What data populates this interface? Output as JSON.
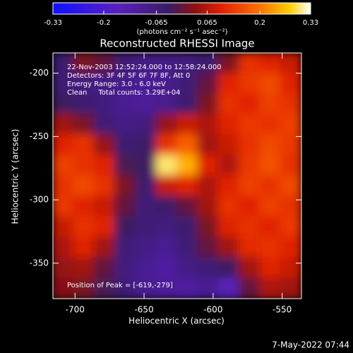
{
  "chart_data": {
    "type": "heatmap",
    "title": "Reconstructed RHESSI Image",
    "xlabel": "Heliocentric X (arcsec)",
    "ylabel": "Heliocentric Y (arcsec)",
    "xlim": [
      -716,
      -536
    ],
    "ylim": [
      -378,
      -184
    ],
    "xticks": [
      -700,
      -650,
      -600,
      -550
    ],
    "yticks": [
      -350,
      -300,
      -250,
      -200
    ],
    "clim": [
      -0.33,
      0.33
    ],
    "cticks": [
      -0.33,
      -0.2,
      -0.065,
      0.065,
      0.2,
      0.33
    ],
    "colorbar_label": "(photons cm⁻² s⁻¹ asec⁻²)",
    "annotations": [
      "22-Nov-2003 12:52:24.000 to 12:58:24.000",
      "Detectors: 3F 4F 5F 6F 7F 8F, Att 0",
      "Energy Range: 3.0 - 6.0 keV",
      "Clean     Total counts: 3.29E+04"
    ],
    "peak_label": "Position of Peak = [-619,-279]",
    "timestamp": "7-May-2022 07:44",
    "z": [
      [
        -0.05,
        0.02,
        0.0,
        -0.06,
        -0.08,
        -0.08,
        -0.07,
        -0.05,
        0.02,
        0.12,
        0.1,
        0.08
      ],
      [
        -0.06,
        -0.07,
        -0.08,
        -0.09,
        -0.1,
        -0.09,
        -0.06,
        0.0,
        0.1,
        0.13,
        0.15,
        0.1
      ],
      [
        -0.03,
        -0.05,
        -0.07,
        -0.1,
        -0.11,
        -0.09,
        -0.05,
        0.02,
        0.12,
        0.1,
        0.14,
        0.12
      ],
      [
        0.05,
        0.02,
        -0.06,
        -0.08,
        -0.07,
        0.04,
        0.08,
        0.06,
        0.1,
        0.13,
        0.12,
        0.14
      ],
      [
        0.1,
        0.12,
        0.04,
        -0.05,
        -0.04,
        0.12,
        0.18,
        0.05,
        0.08,
        0.12,
        0.15,
        0.13
      ],
      [
        0.14,
        0.12,
        0.1,
        -0.02,
        -0.03,
        0.3,
        0.25,
        0.1,
        0.06,
        0.13,
        0.16,
        0.12
      ],
      [
        0.12,
        0.15,
        0.12,
        0.02,
        -0.05,
        0.08,
        0.1,
        0.06,
        0.1,
        0.14,
        0.12,
        0.15
      ],
      [
        0.13,
        0.1,
        0.08,
        0.0,
        -0.06,
        -0.04,
        0.0,
        0.05,
        0.12,
        0.1,
        0.14,
        0.12
      ],
      [
        0.08,
        0.12,
        0.1,
        -0.03,
        -0.06,
        -0.07,
        -0.05,
        0.02,
        0.1,
        0.12,
        0.1,
        0.13
      ],
      [
        0.06,
        0.1,
        0.05,
        -0.06,
        -0.08,
        -0.1,
        -0.06,
        0.0,
        0.05,
        0.11,
        0.12,
        0.1
      ],
      [
        0.04,
        0.05,
        0.0,
        -0.07,
        -0.1,
        -0.12,
        -0.08,
        -0.06,
        -0.03,
        0.05,
        0.1,
        0.08
      ],
      [
        0.03,
        0.02,
        -0.02,
        -0.06,
        -0.1,
        -0.11,
        -0.12,
        -0.1,
        -0.15,
        0.0,
        0.06,
        0.05
      ]
    ]
  }
}
